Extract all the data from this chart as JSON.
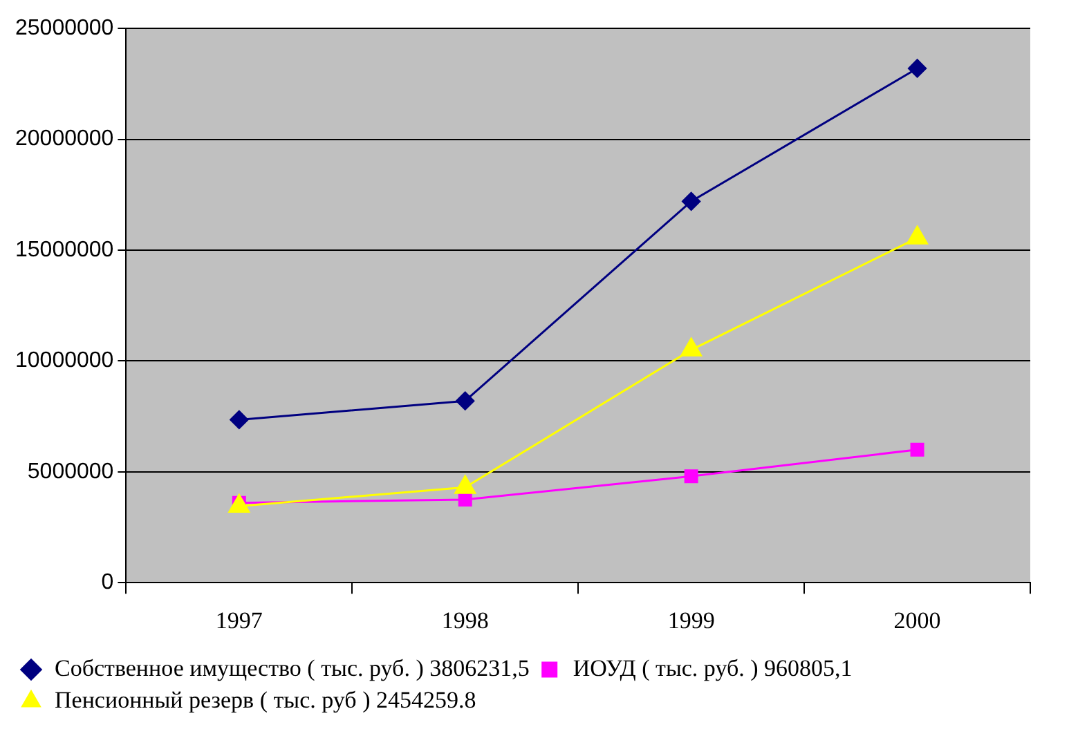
{
  "chart_data": {
    "type": "line",
    "categories": [
      "1997",
      "1998",
      "1999",
      "2000"
    ],
    "series": [
      {
        "name": "Собственное имущество ( тыс. руб. ) 3806231,5",
        "color": "#000080",
        "marker": "diamond",
        "values": [
          7350000,
          8200000,
          17200000,
          23200000
        ]
      },
      {
        "name": "ИОУД ( тыс. руб. ) 960805,1",
        "color": "#ff00ff",
        "marker": "square",
        "values": [
          3600000,
          3750000,
          4800000,
          6000000
        ]
      },
      {
        "name": "Пенсионный резерв ( тыс. руб ) 2454259.8",
        "color": "#ffff00",
        "marker": "triangle",
        "values": [
          3450000,
          4300000,
          10500000,
          15550000
        ]
      }
    ],
    "ylim": [
      0,
      25000000
    ],
    "yticks": [
      0,
      5000000,
      10000000,
      15000000,
      20000000,
      25000000
    ],
    "grid": "y",
    "legend": "bottom",
    "line_style": "solid"
  }
}
